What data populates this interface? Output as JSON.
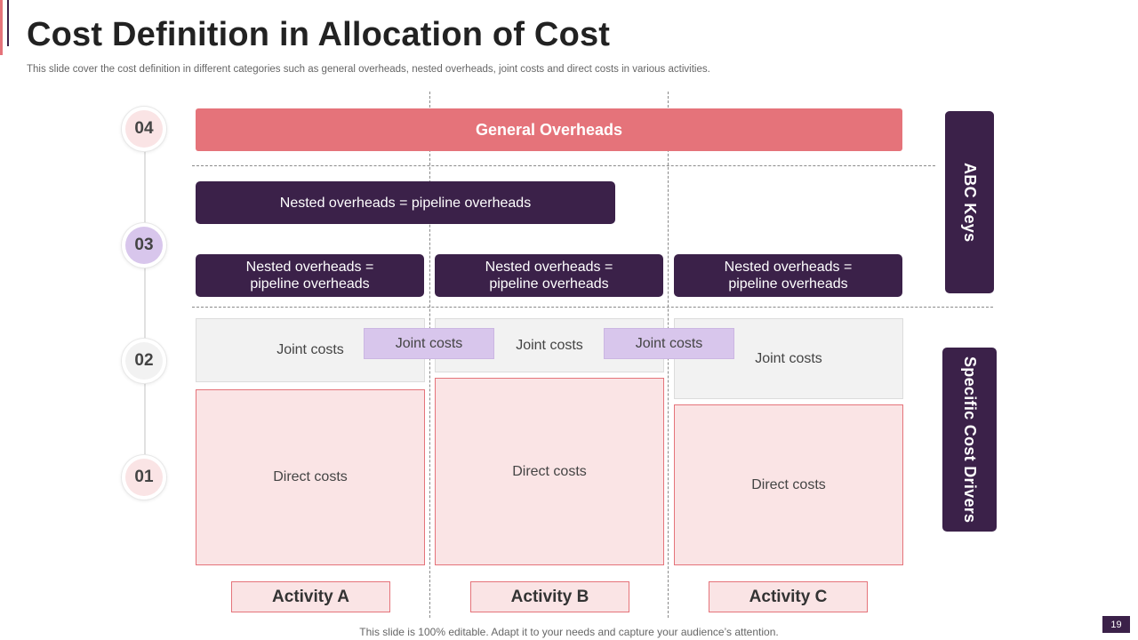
{
  "slide": {
    "title": "Cost Definition in Allocation of Cost",
    "subtitle": "This slide cover the cost definition in different categories such as general overheads, nested overheads, joint costs and direct costs in various activities.",
    "footer": "This slide is 100% editable. Adapt it to your needs and capture your audience’s attention.",
    "page_number": "19"
  },
  "colors": {
    "accent_coral": "#e5737a",
    "dark_purple": "#3b2149",
    "light_pink": "#fae4e5",
    "light_lavender": "#d8c6ec",
    "light_gray": "#f2f2f2"
  },
  "levels": [
    {
      "label": "04",
      "fill": "#fae4e5"
    },
    {
      "label": "03",
      "fill": "#d8c6ec"
    },
    {
      "label": "02",
      "fill": "#f2f2f2"
    },
    {
      "label": "01",
      "fill": "#fae4e5"
    }
  ],
  "general_overheads": "General Overheads",
  "nested": {
    "wide": "Nested overheads = pipeline overheads",
    "a": "Nested overheads = pipeline overheads",
    "b": "Nested overheads = pipeline overheads",
    "c": "Nested overheads = pipeline overheads"
  },
  "joint": {
    "a": "Joint costs",
    "ab": "Joint costs",
    "b": "Joint costs",
    "bc": "Joint costs",
    "c": "Joint costs"
  },
  "direct": {
    "a": "Direct costs",
    "b": "Direct costs",
    "c": "Direct costs"
  },
  "activities": [
    "Activity A",
    "Activity B",
    "Activity C"
  ],
  "side_labels": {
    "abc_keys": "ABC Keys",
    "specific_cost_drivers": "Specific Cost Drivers"
  }
}
